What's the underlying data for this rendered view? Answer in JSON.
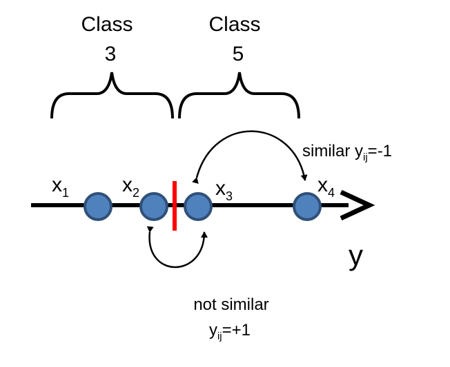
{
  "classes": [
    {
      "label": "Class",
      "number": "3"
    },
    {
      "label": "Class",
      "number": "5"
    }
  ],
  "points": [
    {
      "letter": "x",
      "index": "1"
    },
    {
      "letter": "x",
      "index": "2"
    },
    {
      "letter": "x",
      "index": "3"
    },
    {
      "letter": "x",
      "index": "4"
    }
  ],
  "axis": {
    "label": "y"
  },
  "relations": {
    "similar": {
      "word": "similar",
      "y": "y",
      "sub": "ij",
      "value": "=-1"
    },
    "not_similar": {
      "word": "not similar",
      "y": "y",
      "sub": "ij",
      "value": "=+1"
    }
  },
  "colors": {
    "point_fill": "#4f81bd",
    "point_stroke": "#2f5078",
    "boundary": "#ff0000",
    "ink": "#000000"
  }
}
